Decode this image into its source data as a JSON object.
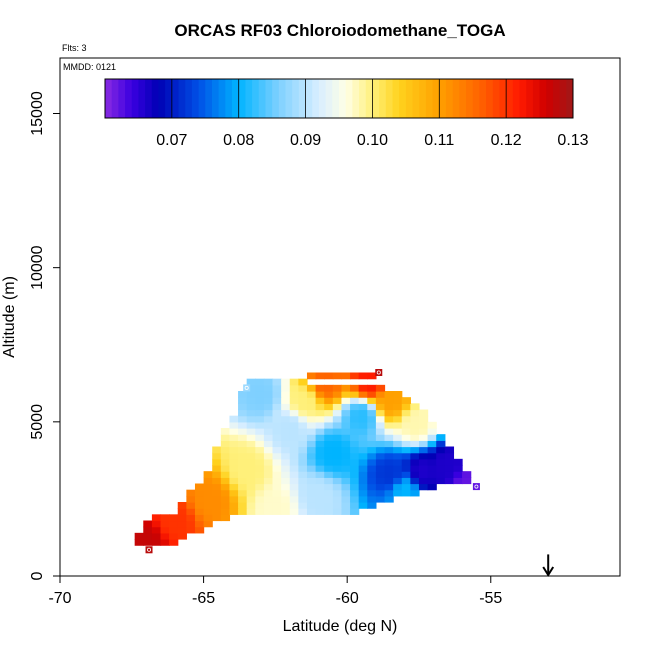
{
  "chart_data": {
    "type": "heatmap",
    "title": "ORCAS RF03 Chloroiodomethane_TOGA",
    "flights_label": "Flts: 3",
    "date_label": "MMDD: 0121",
    "xlabel": "Latitude (deg N)",
    "ylabel": "Altitude (m)",
    "xlim": [
      -70,
      -50.5
    ],
    "ylim": [
      0,
      16800
    ],
    "x_ticks": [
      -70,
      -65,
      -60,
      -55
    ],
    "x_tick_labels": [
      "-70",
      "-65",
      "-60",
      "-55"
    ],
    "y_ticks": [
      0,
      5000,
      10000,
      15000
    ],
    "y_tick_labels": [
      "0",
      "5000",
      "10000",
      "15000"
    ],
    "colorbar": {
      "min": 0.06,
      "max": 0.13,
      "ticks": [
        0.07,
        0.08,
        0.09,
        0.1,
        0.11,
        0.12,
        0.13
      ],
      "tick_labels": [
        "0.07",
        "0.08",
        "0.09",
        "0.10",
        "0.11",
        "0.12",
        "0.13"
      ],
      "stops": [
        {
          "v": 0.06,
          "c": "#8a2be2"
        },
        {
          "v": 0.064,
          "c": "#3a00e0"
        },
        {
          "v": 0.068,
          "c": "#0000b4"
        },
        {
          "v": 0.074,
          "c": "#0050e6"
        },
        {
          "v": 0.08,
          "c": "#00b4ff"
        },
        {
          "v": 0.086,
          "c": "#7fd0ff"
        },
        {
          "v": 0.092,
          "c": "#d8eeff"
        },
        {
          "v": 0.096,
          "c": "#ffffe6"
        },
        {
          "v": 0.1,
          "c": "#fff07a"
        },
        {
          "v": 0.104,
          "c": "#ffd21e"
        },
        {
          "v": 0.11,
          "c": "#ffa000"
        },
        {
          "v": 0.116,
          "c": "#ff6400"
        },
        {
          "v": 0.122,
          "c": "#ff1a00"
        },
        {
          "v": 0.126,
          "c": "#d00000"
        },
        {
          "v": 0.13,
          "c": "#a01818"
        }
      ]
    },
    "field": {
      "lat_start": -67.4,
      "lat_step": 0.3,
      "alt_start": 1000,
      "alt_step": 200,
      "boundary": [
        {
          "alt": 1000,
          "lat_min": -67.4,
          "lat_max": -66.0
        },
        {
          "alt": 1800,
          "lat_min": -66.8,
          "lat_max": -64.2
        },
        {
          "alt": 2000,
          "lat_min": -66.0,
          "lat_max": -59.6
        },
        {
          "alt": 2800,
          "lat_min": -65.3,
          "lat_max": -57.0
        },
        {
          "alt": 3000,
          "lat_min": -65.0,
          "lat_max": -55.6
        },
        {
          "alt": 4500,
          "lat_min": -64.4,
          "lat_max": -56.7
        },
        {
          "alt": 5200,
          "lat_min": -63.9,
          "lat_max": -57.2
        },
        {
          "alt": 6000,
          "lat_min": -63.6,
          "lat_max": -58.6
        },
        {
          "alt": 6200,
          "lat_min": -63.6,
          "lat_max": -61.4
        },
        {
          "alt": 6400,
          "lat_min": -61.4,
          "lat_max": -58.9
        }
      ],
      "anchors": [
        {
          "lat": -67.0,
          "alt": 1100,
          "v": 0.127
        },
        {
          "lat": -66.0,
          "alt": 1800,
          "v": 0.12
        },
        {
          "lat": -64.8,
          "alt": 2500,
          "v": 0.112
        },
        {
          "lat": -63.5,
          "alt": 3500,
          "v": 0.1
        },
        {
          "lat": -62.5,
          "alt": 2200,
          "v": 0.097
        },
        {
          "lat": -62.0,
          "alt": 4800,
          "v": 0.09
        },
        {
          "lat": -63.0,
          "alt": 5900,
          "v": 0.086
        },
        {
          "lat": -61.0,
          "alt": 2600,
          "v": 0.09
        },
        {
          "lat": -60.5,
          "alt": 4000,
          "v": 0.08
        },
        {
          "lat": -59.5,
          "alt": 5200,
          "v": 0.082
        },
        {
          "lat": -60.8,
          "alt": 6300,
          "v": 0.116
        },
        {
          "lat": -59.2,
          "alt": 6300,
          "v": 0.122
        },
        {
          "lat": -58.5,
          "alt": 5700,
          "v": 0.11
        },
        {
          "lat": -57.6,
          "alt": 4900,
          "v": 0.098
        },
        {
          "lat": -57.4,
          "alt": 3400,
          "v": 0.066
        },
        {
          "lat": -58.5,
          "alt": 3300,
          "v": 0.072
        },
        {
          "lat": -56.5,
          "alt": 3600,
          "v": 0.066
        },
        {
          "lat": -55.8,
          "alt": 3000,
          "v": 0.062
        },
        {
          "lat": -58.0,
          "alt": 2800,
          "v": 0.08
        },
        {
          "lat": -61.5,
          "alt": 5700,
          "v": 0.1
        }
      ],
      "markers": [
        {
          "lat": -66.9,
          "alt": 850,
          "v": 0.128
        },
        {
          "lat": -58.9,
          "alt": 6600,
          "v": 0.128
        },
        {
          "lat": -55.5,
          "alt": 2900,
          "v": 0.062
        },
        {
          "lat": -63.5,
          "alt": 6100,
          "v": 0.088
        }
      ]
    },
    "arrow": {
      "lat": -53.0,
      "alt_top": 700,
      "alt_bottom": 0
    }
  }
}
